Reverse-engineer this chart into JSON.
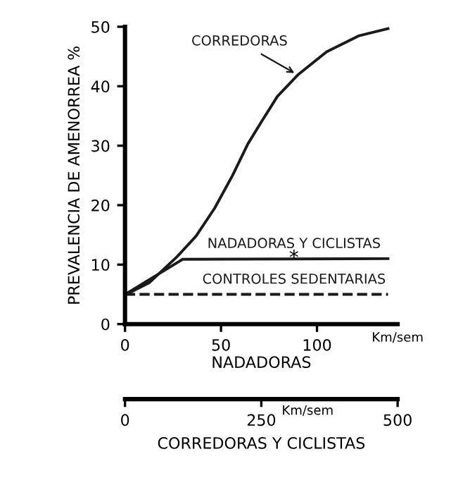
{
  "chart_data": {
    "type": "line",
    "ylabel": "PREVALENCIA DE AMENORREA %",
    "xlabel": "NADADORAS",
    "x2label": "CORREDORAS Y CICLISTAS",
    "xlim": [
      0,
      142
    ],
    "xticks": [
      0,
      50,
      100
    ],
    "ylim": [
      0,
      50
    ],
    "yticks": [
      0,
      10,
      20,
      30,
      40,
      50
    ],
    "x2lim": [
      0,
      500
    ],
    "x2ticks": [
      0,
      250,
      500
    ],
    "grid": false,
    "legend": false,
    "marker": "none",
    "annotations": [
      "Km/sem",
      "Km/sem",
      {
        "text": "*",
        "x": 88,
        "y": 11
      }
    ],
    "series": [
      {
        "name": "CORREDORAS",
        "color": "#1a1a1a",
        "line_style": "solid",
        "x": [
          0,
          12.8,
          27,
          37,
          46.7,
          56,
          64,
          71,
          79.4,
          90,
          105,
          122,
          137
        ],
        "values": [
          4.9,
          7,
          11.3,
          14.8,
          19.5,
          25,
          30.3,
          34,
          38.3,
          41.9,
          45.8,
          48.5,
          49.7
        ]
      },
      {
        "name": "NADADORAS Y CICLISTAS",
        "color": "#1a1a1a",
        "line_style": "solid",
        "x": [
          0,
          30,
          137
        ],
        "values": [
          5,
          10.9,
          11
        ]
      },
      {
        "name": "CONTROLES SEDENTARIAS",
        "color": "#1a1a1a",
        "line_style": "dashed",
        "x": [
          0,
          137
        ],
        "values": [
          5,
          5
        ]
      }
    ]
  }
}
